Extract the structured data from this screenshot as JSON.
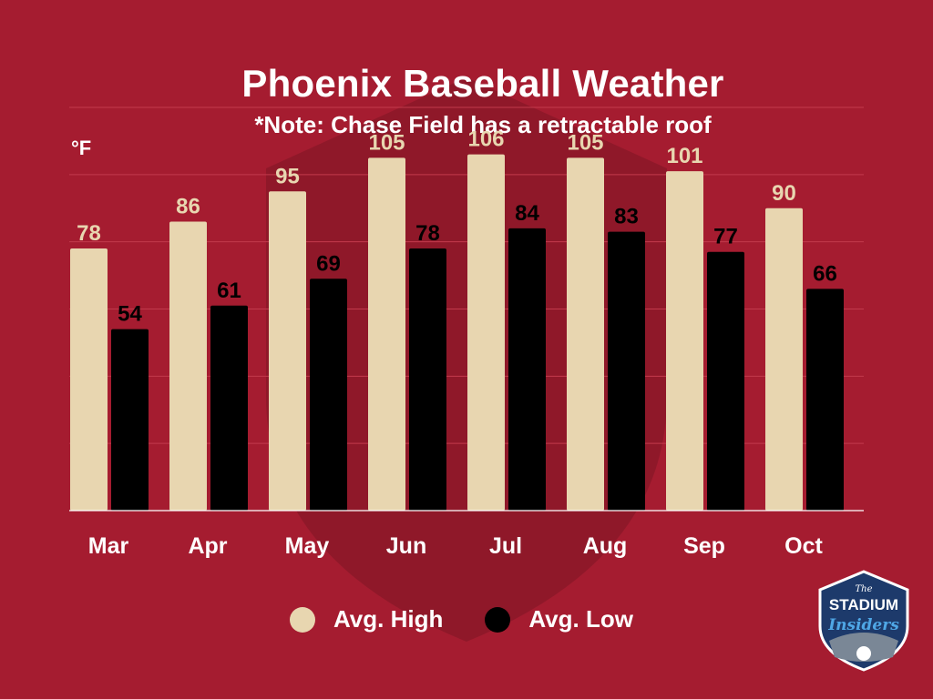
{
  "chart_data": {
    "type": "bar",
    "title": "Phoenix Baseball Weather",
    "subtitle": "*Note: Chase Field has a retractable roof",
    "ylabel": "°F",
    "categories": [
      "Mar",
      "Apr",
      "May",
      "Jun",
      "Jul",
      "Aug",
      "Sep",
      "Oct"
    ],
    "series": [
      {
        "name": "Avg. High",
        "values": [
          78,
          86,
          95,
          105,
          106,
          105,
          101,
          90
        ],
        "color": "#e8d6b0",
        "label_color": "#e8d6b0"
      },
      {
        "name": "Avg. Low",
        "values": [
          54,
          61,
          69,
          78,
          84,
          83,
          77,
          66
        ],
        "color": "#000000",
        "label_color": "#000000"
      }
    ],
    "ylim": [
      0,
      120
    ],
    "grid": true,
    "legend_position": "bottom"
  },
  "colors": {
    "background": "#a51c30",
    "grid": "#c23a4c",
    "axis": "#ffffff"
  },
  "logo": {
    "line1": "The",
    "line2": "STADIUM",
    "line3": "Insiders"
  }
}
